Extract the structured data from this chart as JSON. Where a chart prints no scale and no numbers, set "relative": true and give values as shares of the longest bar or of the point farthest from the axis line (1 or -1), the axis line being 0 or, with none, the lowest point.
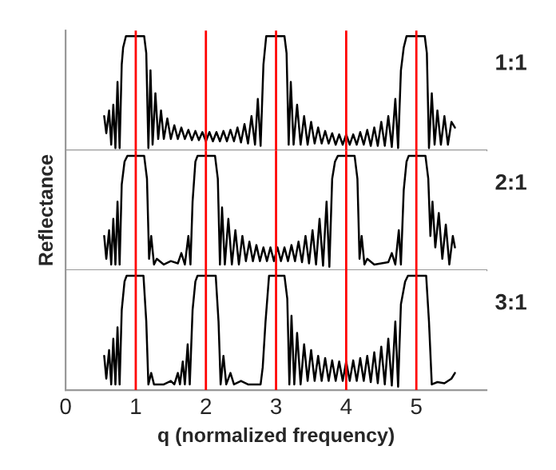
{
  "chart_data": [
    {
      "type": "line",
      "relative": true,
      "xlim": [
        0,
        6
      ],
      "tick_labels": false,
      "marker": "none",
      "line_style": "solid",
      "grid": false,
      "legend": false,
      "ref_lines": [
        {
          "axis": "x",
          "value": 1,
          "color": "#ff0000"
        },
        {
          "axis": "x",
          "value": 2,
          "color": "#ff0000"
        },
        {
          "axis": "x",
          "value": 3,
          "color": "#ff0000"
        },
        {
          "axis": "x",
          "value": 4,
          "color": "#ff0000"
        },
        {
          "axis": "x",
          "value": 5,
          "color": "#ff0000"
        }
      ],
      "series": [
        {
          "name": "1:1",
          "color": "#000000",
          "x": [
            0.55,
            0.58,
            0.62,
            0.65,
            0.68,
            0.71,
            0.74,
            0.77,
            0.8,
            0.82,
            0.86,
            1.12,
            1.15,
            1.18,
            1.21,
            1.24,
            1.28,
            1.32,
            1.36,
            1.4,
            1.45,
            1.5,
            1.55,
            1.6,
            1.65,
            1.7,
            1.75,
            1.8,
            1.85,
            1.9,
            1.95,
            2.0,
            2.05,
            2.1,
            2.15,
            2.2,
            2.25,
            2.3,
            2.35,
            2.4,
            2.45,
            2.5,
            2.55,
            2.6,
            2.65,
            2.7,
            2.74,
            2.78,
            2.82,
            2.86,
            3.12,
            3.15,
            3.18,
            3.21,
            3.25,
            3.3,
            3.35,
            3.4,
            3.45,
            3.5,
            3.55,
            3.6,
            3.65,
            3.7,
            3.75,
            3.8,
            3.85,
            3.9,
            3.95,
            4.0,
            4.05,
            4.1,
            4.15,
            4.2,
            4.25,
            4.3,
            4.35,
            4.4,
            4.45,
            4.5,
            4.55,
            4.6,
            4.65,
            4.7,
            4.74,
            4.78,
            4.82,
            4.86,
            5.12,
            5.15,
            5.18,
            5.22,
            5.26,
            5.3,
            5.35,
            5.4,
            5.45,
            5.5,
            5.55
          ],
          "values": [
            0.3,
            0.15,
            0.35,
            0.05,
            0.4,
            0.02,
            0.6,
            0.02,
            0.75,
            0.9,
            1,
            1,
            0.85,
            0.02,
            0.7,
            0.05,
            0.5,
            0.1,
            0.35,
            0.1,
            0.28,
            0.1,
            0.22,
            0.1,
            0.2,
            0.1,
            0.18,
            0.09,
            0.17,
            0.09,
            0.16,
            0.08,
            0.16,
            0.08,
            0.16,
            0.08,
            0.17,
            0.08,
            0.18,
            0.08,
            0.2,
            0.07,
            0.23,
            0.06,
            0.3,
            0.05,
            0.45,
            0.04,
            0.75,
            1,
            1,
            0.85,
            0.05,
            0.6,
            0.05,
            0.4,
            0.05,
            0.3,
            0.05,
            0.25,
            0.06,
            0.2,
            0.06,
            0.17,
            0.06,
            0.15,
            0.05,
            0.14,
            0.05,
            0.14,
            0.05,
            0.14,
            0.05,
            0.16,
            0.05,
            0.18,
            0.04,
            0.2,
            0.04,
            0.25,
            0.04,
            0.3,
            0.03,
            0.45,
            0.02,
            0.7,
            0.9,
            1,
            1,
            0.85,
            0.02,
            0.5,
            0.05,
            0.35,
            0.05,
            0.3,
            0.05,
            0.25,
            0.2
          ]
        }
      ]
    },
    {
      "type": "line",
      "relative": true,
      "xlim": [
        0,
        6
      ],
      "tick_labels": false,
      "marker": "none",
      "line_style": "solid",
      "grid": false,
      "legend": false,
      "ylabel": "Reflectance",
      "ref_lines": [
        {
          "axis": "x",
          "value": 1,
          "color": "#ff0000"
        },
        {
          "axis": "x",
          "value": 2,
          "color": "#ff0000"
        },
        {
          "axis": "x",
          "value": 3,
          "color": "#ff0000"
        },
        {
          "axis": "x",
          "value": 4,
          "color": "#ff0000"
        },
        {
          "axis": "x",
          "value": 5,
          "color": "#ff0000"
        }
      ],
      "series": [
        {
          "name": "2:1",
          "color": "#000000",
          "x": [
            0.55,
            0.58,
            0.62,
            0.65,
            0.68,
            0.71,
            0.74,
            0.77,
            0.8,
            0.84,
            0.88,
            1.12,
            1.16,
            1.19,
            1.22,
            1.26,
            1.3,
            1.4,
            1.5,
            1.6,
            1.65,
            1.7,
            1.75,
            1.78,
            1.81,
            1.85,
            1.88,
            2.13,
            2.17,
            2.2,
            2.23,
            2.27,
            2.32,
            2.37,
            2.42,
            2.47,
            2.52,
            2.57,
            2.62,
            2.67,
            2.72,
            2.77,
            2.82,
            2.87,
            2.92,
            2.97,
            3.02,
            3.07,
            3.12,
            3.17,
            3.22,
            3.27,
            3.32,
            3.37,
            3.42,
            3.47,
            3.52,
            3.57,
            3.62,
            3.67,
            3.72,
            3.76,
            3.8,
            3.84,
            3.88,
            4.12,
            4.16,
            4.19,
            4.22,
            4.26,
            4.3,
            4.4,
            4.5,
            4.6,
            4.65,
            4.7,
            4.75,
            4.78,
            4.82,
            4.86,
            4.89,
            5.13,
            5.17,
            5.2,
            5.23,
            5.27,
            5.32,
            5.37,
            5.42,
            5.47,
            5.52,
            5.55
          ],
          "values": [
            0.3,
            0.1,
            0.35,
            0.05,
            0.45,
            0.05,
            0.6,
            0.05,
            0.75,
            0.95,
            1,
            1,
            0.8,
            0.1,
            0.3,
            0.05,
            0.1,
            0.05,
            0.08,
            0.06,
            0.15,
            0.05,
            0.3,
            0.05,
            0.6,
            0.95,
            1,
            1,
            0.8,
            0.05,
            0.55,
            0.05,
            0.45,
            0.05,
            0.35,
            0.05,
            0.3,
            0.08,
            0.25,
            0.08,
            0.22,
            0.08,
            0.2,
            0.08,
            0.2,
            0.08,
            0.2,
            0.08,
            0.2,
            0.08,
            0.22,
            0.08,
            0.25,
            0.07,
            0.3,
            0.06,
            0.35,
            0.05,
            0.45,
            0.04,
            0.6,
            0.03,
            0.8,
            0.95,
            1,
            1,
            0.8,
            0.1,
            0.3,
            0.05,
            0.1,
            0.05,
            0.06,
            0.07,
            0.15,
            0.05,
            0.35,
            0.05,
            0.7,
            0.95,
            1,
            1,
            0.8,
            0.3,
            0.6,
            0.2,
            0.5,
            0.1,
            0.4,
            0.05,
            0.3,
            0.2
          ]
        }
      ]
    },
    {
      "type": "line",
      "relative": true,
      "xlim": [
        0,
        6
      ],
      "xticks": [
        0,
        1,
        2,
        3,
        4,
        5
      ],
      "tick_labels": "x",
      "marker": "none",
      "line_style": "solid",
      "grid": false,
      "legend": false,
      "xlabel": "q (normalized frequency)",
      "ref_lines": [
        {
          "axis": "x",
          "value": 1,
          "color": "#ff0000"
        },
        {
          "axis": "x",
          "value": 2,
          "color": "#ff0000"
        },
        {
          "axis": "x",
          "value": 3,
          "color": "#ff0000"
        },
        {
          "axis": "x",
          "value": 4,
          "color": "#ff0000"
        },
        {
          "axis": "x",
          "value": 5,
          "color": "#ff0000"
        }
      ],
      "series": [
        {
          "name": "3:1",
          "color": "#000000",
          "x": [
            0.55,
            0.58,
            0.62,
            0.65,
            0.68,
            0.71,
            0.74,
            0.77,
            0.8,
            0.84,
            0.87,
            1.11,
            1.15,
            1.18,
            1.22,
            1.26,
            1.4,
            1.5,
            1.55,
            1.6,
            1.63,
            1.67,
            1.7,
            1.74,
            1.77,
            1.81,
            1.85,
            1.88,
            2.14,
            2.18,
            2.21,
            2.25,
            2.29,
            2.35,
            2.4,
            2.5,
            2.6,
            2.7,
            2.78,
            2.81,
            2.85,
            2.9,
            3.12,
            3.16,
            3.19,
            3.22,
            3.26,
            3.3,
            3.35,
            3.4,
            3.45,
            3.5,
            3.55,
            3.6,
            3.65,
            3.7,
            3.75,
            3.8,
            3.85,
            3.9,
            3.95,
            4.0,
            4.05,
            4.1,
            4.15,
            4.2,
            4.25,
            4.3,
            4.35,
            4.4,
            4.45,
            4.5,
            4.55,
            4.6,
            4.65,
            4.7,
            4.74,
            4.78,
            4.84,
            4.88,
            5.14,
            5.18,
            5.22,
            5.3,
            5.4,
            5.5,
            5.55
          ],
          "values": [
            0.3,
            0.1,
            0.35,
            0.05,
            0.45,
            0.05,
            0.55,
            0.05,
            0.7,
            0.95,
            1,
            1,
            0.6,
            0.05,
            0.15,
            0.05,
            0.05,
            0.08,
            0.05,
            0.15,
            0.05,
            0.25,
            0.05,
            0.4,
            0.05,
            0.7,
            0.95,
            1,
            1,
            0.6,
            0.05,
            0.3,
            0.05,
            0.15,
            0.05,
            0.08,
            0.05,
            0.05,
            0.05,
            0.2,
            0.6,
            1,
            1,
            0.8,
            0.05,
            0.65,
            0.05,
            0.5,
            0.05,
            0.4,
            0.08,
            0.35,
            0.08,
            0.3,
            0.08,
            0.28,
            0.08,
            0.26,
            0.08,
            0.25,
            0.08,
            0.25,
            0.08,
            0.26,
            0.08,
            0.28,
            0.08,
            0.3,
            0.07,
            0.33,
            0.06,
            0.38,
            0.05,
            0.45,
            0.04,
            0.6,
            0.03,
            0.75,
            0.95,
            1,
            1,
            0.6,
            0.05,
            0.07,
            0.06,
            0.1,
            0.15
          ]
        }
      ]
    }
  ]
}
